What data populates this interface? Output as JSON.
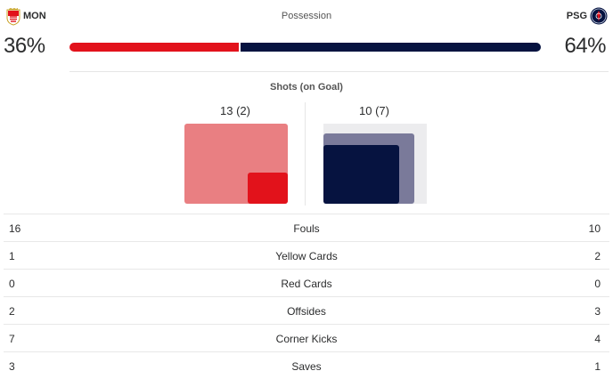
{
  "colors": {
    "home": "#e2121b",
    "away": "#061340"
  },
  "home": {
    "abbr": "MON",
    "logo": "as-monaco-crest-icon",
    "possession_pct": 36,
    "possession_label": "36%"
  },
  "away": {
    "abbr": "PSG",
    "logo": "psg-crest-icon",
    "possession_pct": 64,
    "possession_label": "64%"
  },
  "possession": {
    "title": "Possession"
  },
  "shots": {
    "title": "Shots (on Goal)",
    "home": {
      "label": "13 (2)",
      "total": 13,
      "on_goal": 2
    },
    "away": {
      "label": "10 (7)",
      "total": 10,
      "on_goal": 7
    }
  },
  "stats": [
    {
      "label": "Fouls",
      "home": "16",
      "away": "10"
    },
    {
      "label": "Yellow Cards",
      "home": "1",
      "away": "2"
    },
    {
      "label": "Red Cards",
      "home": "0",
      "away": "0"
    },
    {
      "label": "Offsides",
      "home": "2",
      "away": "3"
    },
    {
      "label": "Corner Kicks",
      "home": "7",
      "away": "4"
    },
    {
      "label": "Saves",
      "home": "3",
      "away": "1"
    }
  ]
}
